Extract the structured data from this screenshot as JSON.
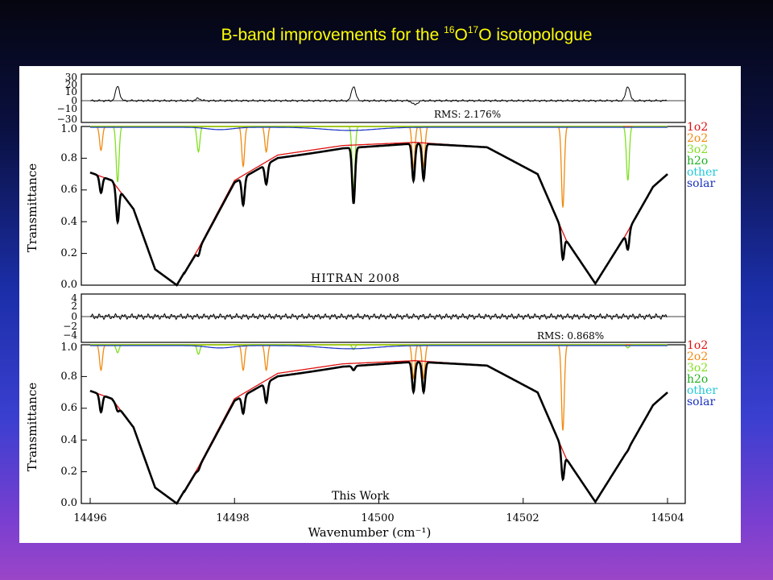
{
  "slide": {
    "title_prefix": "B-band improvements for the ",
    "iso_a_mass": "16",
    "iso_a_elem": "O",
    "iso_b_mass": "17",
    "iso_b_elem": "O",
    "title_suffix": " isotopologue"
  },
  "colors": {
    "1o2": "#e01010",
    "2o2": "#f08a10",
    "3o2": "#80e020",
    "h2o": "#20b020",
    "other": "#20c8d8",
    "solar": "#1830c0",
    "observed": "#000000"
  },
  "chart_data": [
    {
      "type": "line",
      "panel": "top",
      "annotation": "HITRAN 2008",
      "rms_label": "RMS: 2.176%",
      "residual_yticks": [
        "30",
        "20",
        "10",
        "0",
        "−10",
        "−30"
      ],
      "ylabel": "Transmittance",
      "yticks": [
        "0.0",
        "0.2",
        "0.4",
        "0.6",
        "0.8",
        "1.0"
      ],
      "ylim": [
        0,
        1.0
      ],
      "xlim": [
        14496,
        14504
      ],
      "legend": [
        "1o2",
        "2o2",
        "3o2",
        "h2o",
        "other",
        "solar"
      ],
      "legend_placement": "right",
      "envelope": {
        "x": [
          14496,
          14496.3,
          14496.6,
          14496.9,
          14497.2,
          14497.5,
          14498.0,
          14498.6,
          14499.5,
          14500.5,
          14501.5,
          14502.2,
          14502.6,
          14503.0,
          14503.4,
          14503.8,
          14504
        ],
        "y": [
          0.71,
          0.66,
          0.48,
          0.1,
          0.0,
          0.23,
          0.66,
          0.82,
          0.88,
          0.9,
          0.87,
          0.7,
          0.28,
          0.01,
          0.3,
          0.62,
          0.7
        ]
      },
      "lines": [
        {
          "species": "2o2",
          "x": 14496.15,
          "depth": 0.85
        },
        {
          "species": "3o2",
          "x": 14496.38,
          "depth": 0.65
        },
        {
          "species": "3o2",
          "x": 14497.5,
          "depth": 0.84
        },
        {
          "species": "2o2",
          "x": 14498.12,
          "depth": 0.75
        },
        {
          "species": "2o2",
          "x": 14498.44,
          "depth": 0.84
        },
        {
          "species": "3o2",
          "x": 14499.65,
          "depth": 0.6
        },
        {
          "species": "2o2",
          "x": 14500.48,
          "depth": 0.74
        },
        {
          "species": "2o2",
          "x": 14500.62,
          "depth": 0.75
        },
        {
          "species": "2o2",
          "x": 14502.55,
          "depth": 0.49
        },
        {
          "species": "3o2",
          "x": 14503.45,
          "depth": 0.66
        }
      ]
    },
    {
      "type": "line",
      "panel": "bottom",
      "annotation": "This Work",
      "rms_label": "RMS: 0.868%",
      "residual_yticks": [
        "4",
        "2",
        "0",
        "−2",
        "−4"
      ],
      "ylabel": "Transmittance",
      "yticks": [
        "0.0",
        "0.2",
        "0.4",
        "0.6",
        "0.8",
        "1.0"
      ],
      "ylim": [
        0,
        1.0
      ],
      "xlabel": "Wavenumber (cm⁻¹)",
      "xticks": [
        "14496",
        "14498",
        "14500",
        "14502",
        "14504"
      ],
      "xlim": [
        14496,
        14504
      ],
      "legend": [
        "1o2",
        "2o2",
        "3o2",
        "h2o",
        "other",
        "solar"
      ],
      "legend_placement": "right",
      "lines": [
        {
          "species": "2o2",
          "x": 14496.15,
          "depth": 0.84
        },
        {
          "species": "3o2",
          "x": 14496.38,
          "depth": 0.95
        },
        {
          "species": "3o2",
          "x": 14497.5,
          "depth": 0.94
        },
        {
          "species": "2o2",
          "x": 14498.12,
          "depth": 0.84
        },
        {
          "species": "2o2",
          "x": 14498.44,
          "depth": 0.84
        },
        {
          "species": "3o2",
          "x": 14499.65,
          "depth": 0.97
        },
        {
          "species": "2o2",
          "x": 14500.48,
          "depth": 0.79
        },
        {
          "species": "2o2",
          "x": 14500.62,
          "depth": 0.79
        },
        {
          "species": "2o2",
          "x": 14502.55,
          "depth": 0.46
        },
        {
          "species": "3o2",
          "x": 14503.45,
          "depth": 0.98
        }
      ]
    }
  ]
}
